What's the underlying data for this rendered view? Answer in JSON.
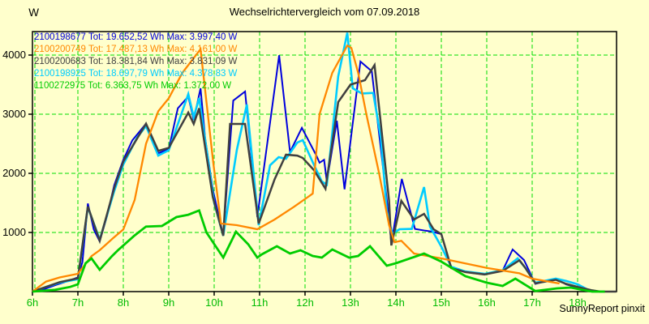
{
  "page": {
    "title": "Wechselrichtervergleich vom 07.09.2018",
    "y_unit": "W",
    "credit": "SunnyReport pinxit",
    "background_color": "#ffffcc"
  },
  "chart_data": {
    "type": "line",
    "title": "Wechselrichtervergleich vom 07.09.2018",
    "xlabel": "",
    "ylabel": "W",
    "x_range": [
      6,
      18.857
    ],
    "y_range": [
      0,
      4397
    ],
    "grid": true,
    "grid_color": "#00dd00",
    "axis_color": "#000000",
    "x_tick_label_color": "#00bb00",
    "y_tick_label_color": "#000000",
    "legend_position": "top-left",
    "x_ticks": [
      {
        "value": 6,
        "label": "6h"
      },
      {
        "value": 7,
        "label": "7h"
      },
      {
        "value": 8,
        "label": "8h"
      },
      {
        "value": 9,
        "label": "9h"
      },
      {
        "value": 10,
        "label": "10h"
      },
      {
        "value": 11,
        "label": "11h"
      },
      {
        "value": 12,
        "label": "12h"
      },
      {
        "value": 13,
        "label": "13h"
      },
      {
        "value": 14,
        "label": "14h"
      },
      {
        "value": 15,
        "label": "15h"
      },
      {
        "value": 16,
        "label": "16h"
      },
      {
        "value": 17,
        "label": "17h"
      },
      {
        "value": 18,
        "label": "18h"
      }
    ],
    "y_ticks": [
      {
        "value": 1000,
        "label": "1000"
      },
      {
        "value": 2000,
        "label": "2000"
      },
      {
        "value": 3000,
        "label": "3000"
      },
      {
        "value": 4000,
        "label": "4000"
      }
    ],
    "series": [
      {
        "name": "2100198677",
        "legend_text": "2100198677 Tot: 19.652,52 Wh Max: 3.997,40 W",
        "total_wh": "19.652,52",
        "max_w": "3.997,40",
        "color": "#0000dd",
        "width": 2,
        "points": [
          [
            6.0,
            0
          ],
          [
            6.25,
            40
          ],
          [
            6.5,
            110
          ],
          [
            6.75,
            170
          ],
          [
            7.0,
            240
          ],
          [
            7.1,
            500
          ],
          [
            7.22,
            1490
          ],
          [
            7.35,
            1050
          ],
          [
            7.48,
            849
          ],
          [
            7.65,
            1300
          ],
          [
            7.8,
            1800
          ],
          [
            8.0,
            2230
          ],
          [
            8.2,
            2560
          ],
          [
            8.5,
            2840
          ],
          [
            8.77,
            2340
          ],
          [
            9.0,
            2410
          ],
          [
            9.2,
            3100
          ],
          [
            9.43,
            3300
          ],
          [
            9.55,
            2904
          ],
          [
            9.7,
            3438
          ],
          [
            9.8,
            2600
          ],
          [
            9.97,
            1726
          ],
          [
            10.2,
            945
          ],
          [
            10.42,
            3230
          ],
          [
            10.68,
            3384
          ],
          [
            10.95,
            1260
          ],
          [
            11.43,
            3997
          ],
          [
            11.67,
            2360
          ],
          [
            11.93,
            2770
          ],
          [
            12.25,
            2300
          ],
          [
            12.32,
            2180
          ],
          [
            12.42,
            2230
          ],
          [
            12.48,
            1860
          ],
          [
            12.7,
            2890
          ],
          [
            12.87,
            1730
          ],
          [
            13.22,
            3890
          ],
          [
            13.47,
            3726
          ],
          [
            13.85,
            1220
          ],
          [
            13.9,
            810
          ],
          [
            14.13,
            1905
          ],
          [
            14.42,
            1060
          ],
          [
            14.65,
            1030
          ],
          [
            14.8,
            1014
          ],
          [
            15.0,
            973
          ],
          [
            15.22,
            397
          ],
          [
            15.53,
            330
          ],
          [
            15.95,
            290
          ],
          [
            16.35,
            356
          ],
          [
            16.57,
            712
          ],
          [
            16.82,
            534
          ],
          [
            17.07,
            130
          ],
          [
            17.32,
            180
          ],
          [
            17.52,
            219
          ],
          [
            17.75,
            120
          ],
          [
            18.0,
            70
          ],
          [
            18.25,
            10
          ],
          [
            18.35,
            0
          ]
        ]
      },
      {
        "name": "2100200749",
        "legend_text": "2100200749 Tot: 17.487,13 Wh Max: 4.161,00 W",
        "total_wh": "17.487,13",
        "max_w": "4.161,00",
        "color": "#ff8800",
        "width": 2.3,
        "points": [
          [
            6.0,
            0
          ],
          [
            6.3,
            170
          ],
          [
            6.6,
            240
          ],
          [
            7.0,
            301
          ],
          [
            7.3,
            600
          ],
          [
            7.48,
            700
          ],
          [
            7.77,
            900
          ],
          [
            8.0,
            1050
          ],
          [
            8.25,
            1550
          ],
          [
            8.5,
            2500
          ],
          [
            8.77,
            3050
          ],
          [
            9.0,
            3270
          ],
          [
            9.3,
            3700
          ],
          [
            9.7,
            4100
          ],
          [
            9.98,
            2178
          ],
          [
            10.15,
            1151
          ],
          [
            10.5,
            1123
          ],
          [
            10.95,
            1055
          ],
          [
            11.33,
            1219
          ],
          [
            11.75,
            1430
          ],
          [
            12.17,
            1658
          ],
          [
            12.32,
            3000
          ],
          [
            12.6,
            3700
          ],
          [
            12.93,
            4161
          ],
          [
            13.02,
            4120
          ],
          [
            13.17,
            3700
          ],
          [
            13.35,
            3000
          ],
          [
            13.63,
            2000
          ],
          [
            13.85,
            1123
          ],
          [
            13.97,
            835
          ],
          [
            14.12,
            860
          ],
          [
            14.4,
            644
          ],
          [
            15.0,
            562
          ],
          [
            16.0,
            400
          ],
          [
            16.72,
            310
          ],
          [
            17.0,
            219
          ],
          [
            17.6,
            137
          ]
        ]
      },
      {
        "name": "2100200683",
        "legend_text": "2100200683 Tot: 18.381,84 Wh Max: 3.831,09 W",
        "total_wh": "18.381,84",
        "max_w": "3.831,09",
        "color": "#404040",
        "width": 2.5,
        "points": [
          [
            6.0,
            0
          ],
          [
            6.3,
            80
          ],
          [
            6.6,
            160
          ],
          [
            7.0,
            225
          ],
          [
            7.22,
            1440
          ],
          [
            7.48,
            860
          ],
          [
            7.8,
            1750
          ],
          [
            8.0,
            2200
          ],
          [
            8.5,
            2840
          ],
          [
            8.77,
            2380
          ],
          [
            9.0,
            2430
          ],
          [
            9.43,
            3027
          ],
          [
            9.55,
            2836
          ],
          [
            9.67,
            3100
          ],
          [
            9.97,
            1600
          ],
          [
            10.2,
            945
          ],
          [
            10.35,
            2836
          ],
          [
            10.68,
            2836
          ],
          [
            10.98,
            1151
          ],
          [
            11.33,
            1900
          ],
          [
            11.58,
            2315
          ],
          [
            11.83,
            2300
          ],
          [
            11.95,
            2260
          ],
          [
            12.2,
            2050
          ],
          [
            12.45,
            1740
          ],
          [
            12.73,
            3205
          ],
          [
            13.0,
            3500
          ],
          [
            13.32,
            3575
          ],
          [
            13.53,
            3831
          ],
          [
            13.85,
            1534
          ],
          [
            13.9,
            781
          ],
          [
            14.12,
            1534
          ],
          [
            14.4,
            1219
          ],
          [
            14.62,
            1315
          ],
          [
            14.83,
            1055
          ],
          [
            15.0,
            973
          ],
          [
            15.22,
            397
          ],
          [
            15.53,
            330
          ],
          [
            15.95,
            290
          ],
          [
            16.35,
            350
          ],
          [
            16.72,
            530
          ],
          [
            16.85,
            400
          ],
          [
            17.07,
            140
          ],
          [
            17.52,
            200
          ],
          [
            17.75,
            130
          ],
          [
            18.0,
            80
          ],
          [
            18.3,
            25
          ],
          [
            18.5,
            0
          ],
          [
            18.85,
            0
          ]
        ]
      },
      {
        "name": "2100198925",
        "legend_text": "2100198925 Tot: 18.697,79 Wh Max: 4.378,83 W",
        "total_wh": "18.697,79",
        "max_w": "4.378,83",
        "color": "#00ccff",
        "width": 2.6,
        "points": [
          [
            6.0,
            0
          ],
          [
            6.3,
            80
          ],
          [
            6.6,
            150
          ],
          [
            7.0,
            210
          ],
          [
            7.22,
            1430
          ],
          [
            7.48,
            880
          ],
          [
            7.8,
            1700
          ],
          [
            8.0,
            2150
          ],
          [
            8.3,
            2600
          ],
          [
            8.5,
            2800
          ],
          [
            8.77,
            2300
          ],
          [
            9.0,
            2390
          ],
          [
            9.43,
            3340
          ],
          [
            9.55,
            2950
          ],
          [
            9.67,
            3274
          ],
          [
            10.0,
            1500
          ],
          [
            10.2,
            945
          ],
          [
            10.5,
            2400
          ],
          [
            10.72,
            3164
          ],
          [
            10.98,
            1123
          ],
          [
            11.23,
            2137
          ],
          [
            11.42,
            2274
          ],
          [
            11.58,
            2247
          ],
          [
            11.83,
            2521
          ],
          [
            11.95,
            2562
          ],
          [
            12.2,
            2137
          ],
          [
            12.37,
            1863
          ],
          [
            12.48,
            1808
          ],
          [
            12.73,
            3640
          ],
          [
            12.93,
            4378
          ],
          [
            13.05,
            3438
          ],
          [
            13.25,
            3350
          ],
          [
            13.5,
            3360
          ],
          [
            13.67,
            2600
          ],
          [
            13.8,
            1360
          ],
          [
            13.92,
            980
          ],
          [
            14.08,
            1055
          ],
          [
            14.35,
            1060
          ],
          [
            14.62,
            1767
          ],
          [
            14.75,
            1100
          ],
          [
            15.0,
            760
          ],
          [
            15.22,
            420
          ],
          [
            15.53,
            340
          ],
          [
            15.95,
            300
          ],
          [
            16.35,
            360
          ],
          [
            16.68,
            561
          ],
          [
            16.85,
            400
          ],
          [
            17.07,
            151
          ],
          [
            17.52,
            219
          ],
          [
            17.75,
            180
          ],
          [
            18.0,
            123
          ],
          [
            18.27,
            15
          ],
          [
            18.35,
            0
          ]
        ]
      },
      {
        "name": "1100272975",
        "legend_text": "1100272975 Tot: 6.363,75 Wh Max: 1.372,00 W",
        "total_wh": "6.363,75",
        "max_w": "1.372,00",
        "color": "#00cc00",
        "width": 2.8,
        "points": [
          [
            6.0,
            0
          ],
          [
            6.5,
            30
          ],
          [
            6.83,
            80
          ],
          [
            7.0,
            123
          ],
          [
            7.17,
            480
          ],
          [
            7.3,
            561
          ],
          [
            7.48,
            370
          ],
          [
            7.75,
            600
          ],
          [
            7.88,
            699
          ],
          [
            8.0,
            780
          ],
          [
            8.25,
            950
          ],
          [
            8.5,
            1100
          ],
          [
            8.85,
            1110
          ],
          [
            9.17,
            1260
          ],
          [
            9.43,
            1300
          ],
          [
            9.67,
            1372
          ],
          [
            9.83,
            1000
          ],
          [
            10.08,
            712
          ],
          [
            10.2,
            575
          ],
          [
            10.48,
            1014
          ],
          [
            10.75,
            800
          ],
          [
            10.95,
            575
          ],
          [
            11.05,
            630
          ],
          [
            11.38,
            767
          ],
          [
            11.67,
            644
          ],
          [
            11.9,
            699
          ],
          [
            12.17,
            603
          ],
          [
            12.37,
            575
          ],
          [
            12.6,
            712
          ],
          [
            12.97,
            575
          ],
          [
            13.17,
            603
          ],
          [
            13.43,
            767
          ],
          [
            13.8,
            438
          ],
          [
            14.0,
            480
          ],
          [
            14.62,
            644
          ],
          [
            15.0,
            507
          ],
          [
            15.53,
            260
          ],
          [
            16.0,
            151
          ],
          [
            16.35,
            96
          ],
          [
            16.63,
            219
          ],
          [
            17.07,
            10
          ],
          [
            17.55,
            55
          ],
          [
            17.85,
            68
          ],
          [
            18.1,
            30
          ],
          [
            18.32,
            0
          ],
          [
            18.6,
            0
          ]
        ]
      }
    ]
  }
}
